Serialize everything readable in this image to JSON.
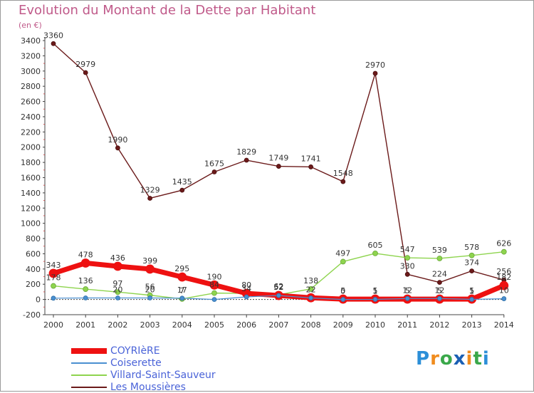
{
  "title": "Evolution du Montant de la Dette par Habitant",
  "subtitle": "(en €)",
  "logo": {
    "letters": [
      "P",
      "r",
      "o",
      "x",
      "i",
      "t",
      "i"
    ],
    "colors": [
      "#2c8fd8",
      "#f08c1e",
      "#3aa84a",
      "#1a5fb4",
      "#f08c1e",
      "#3aa84a",
      "#2c8fd8"
    ]
  },
  "chart_data": {
    "type": "line",
    "title": "Evolution du Montant de la Dette par Habitant",
    "ylabel": "(en €)",
    "xlabel": "",
    "x": [
      "2000",
      "2001",
      "2002",
      "2003",
      "2004",
      "2005",
      "2006",
      "2007",
      "2008",
      "2009",
      "2010",
      "2011",
      "2012",
      "2013",
      "2014"
    ],
    "ylim": [
      -200,
      3400
    ],
    "yticks": [
      -200,
      0,
      200,
      400,
      600,
      800,
      1000,
      1200,
      1400,
      1600,
      1800,
      2000,
      2200,
      2400,
      2600,
      2800,
      3000,
      3200,
      3400
    ],
    "grid": false,
    "legend": "bottom-left",
    "series": [
      {
        "name": "COYRIèRE",
        "color": "#ee1111",
        "values": [
          343,
          478,
          436,
          399,
          295,
          190,
          80,
          52,
          22,
          5,
          5,
          5,
          5,
          5,
          182
        ],
        "labels": [
          "343",
          "478",
          "436",
          "399",
          "295",
          "190",
          "80",
          "52",
          "22",
          "5",
          "5",
          "5",
          "5",
          "5",
          "182"
        ]
      },
      {
        "name": "Coiserette",
        "color": "#4a8fd0",
        "values": [
          17,
          20,
          20,
          20,
          17,
          0,
          34,
          52,
          20,
          0,
          1,
          12,
          12,
          1,
          10
        ],
        "labels": [
          "",
          "",
          "20",
          "20",
          "17",
          "",
          "34",
          "52",
          "",
          "0",
          "1",
          "12",
          "12",
          "1",
          "10"
        ]
      },
      {
        "name": "Villard-Saint-Sauveur",
        "color": "#8ed44e",
        "values": [
          178,
          136,
          97,
          56,
          7,
          84,
          80,
          62,
          138,
          497,
          605,
          547,
          539,
          578,
          626
        ],
        "labels": [
          "178",
          "136",
          "97",
          "56",
          "7",
          "84",
          "",
          "62",
          "138",
          "497",
          "605",
          "547",
          "539",
          "578",
          "626"
        ]
      },
      {
        "name": "Les Moussières",
        "color": "#6b1a1a",
        "values": [
          3360,
          2979,
          1990,
          1329,
          1435,
          1675,
          1829,
          1749,
          1741,
          1548,
          2970,
          330,
          224,
          374,
          256
        ],
        "labels": [
          "3360",
          "2979",
          "1990",
          "1329",
          "1435",
          "1675",
          "1829",
          "1749",
          "1741",
          "1548",
          "2970",
          "330",
          "224",
          "374",
          "256"
        ]
      }
    ]
  }
}
